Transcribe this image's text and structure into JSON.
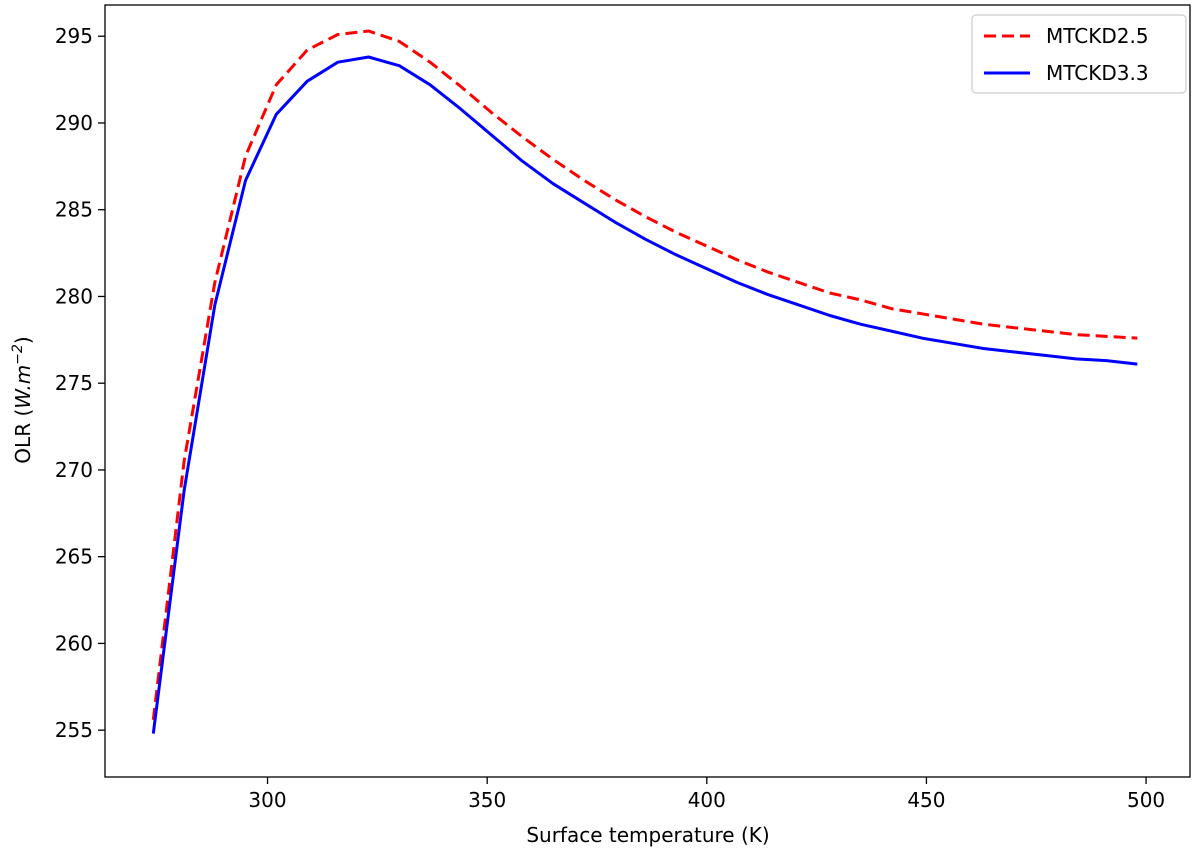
{
  "chart_data": {
    "type": "line",
    "xlabel": "Surface temperature (K)",
    "ylabel_prefix": "OLR (",
    "ylabel_unit_main": "W.m",
    "ylabel_unit_exp": "−2",
    "ylabel_suffix": ")",
    "xlim": [
      263,
      510
    ],
    "ylim": [
      252.3,
      296.8
    ],
    "x_ticks": [
      300,
      350,
      400,
      450,
      500
    ],
    "y_ticks": [
      255,
      260,
      265,
      270,
      275,
      280,
      285,
      290,
      295
    ],
    "grid": false,
    "legend_position": "top-right",
    "series": [
      {
        "name": "MTCKD2.5",
        "color": "#ff0000",
        "style": "dashed",
        "x": [
          274,
          281,
          288,
          295,
          302,
          309,
          316,
          323,
          330,
          337,
          344,
          351,
          358,
          365,
          372,
          379,
          386,
          393,
          400,
          407,
          414,
          421,
          428,
          435,
          442,
          449,
          456,
          463,
          470,
          477,
          484,
          491,
          498
        ],
        "y": [
          255.6,
          270.5,
          280.8,
          288.1,
          292.2,
          294.2,
          295.1,
          295.3,
          294.7,
          293.5,
          292.1,
          290.6,
          289.2,
          287.9,
          286.7,
          285.6,
          284.6,
          283.7,
          282.9,
          282.1,
          281.4,
          280.8,
          280.2,
          279.8,
          279.3,
          279.0,
          278.7,
          278.4,
          278.2,
          278.0,
          277.8,
          277.7,
          277.6
        ]
      },
      {
        "name": "MTCKD3.3",
        "color": "#0000ff",
        "style": "solid",
        "x": [
          274,
          281,
          288,
          295,
          302,
          309,
          316,
          323,
          330,
          337,
          344,
          351,
          358,
          365,
          372,
          379,
          386,
          393,
          400,
          407,
          414,
          421,
          428,
          435,
          442,
          449,
          456,
          463,
          470,
          477,
          484,
          491,
          498
        ],
        "y": [
          254.8,
          268.8,
          279.5,
          286.7,
          290.5,
          292.4,
          293.5,
          293.8,
          293.3,
          292.2,
          290.8,
          289.3,
          287.8,
          286.5,
          285.4,
          284.3,
          283.3,
          282.4,
          281.6,
          280.8,
          280.1,
          279.5,
          278.9,
          278.4,
          278.0,
          277.6,
          277.3,
          277.0,
          276.8,
          276.6,
          276.4,
          276.3,
          276.1
        ]
      }
    ]
  }
}
